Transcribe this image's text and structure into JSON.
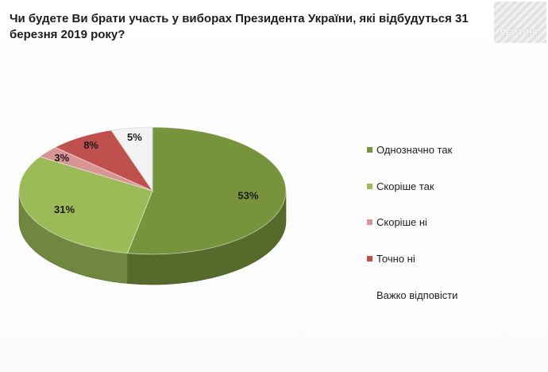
{
  "title": "Чи будете Ви брати участь у виборах Президента України, які відбудуться 31 березня 2019 року?",
  "logo": {
    "text": "РЕЙТИНГ"
  },
  "colors": {
    "Однозначно так": "#77933c",
    "Скоріше так": "#9bbb59",
    "Скоріше ні": "#d99594",
    "Точно ні": "#c0504d",
    "Важко відповісти": "#f2f2f2"
  },
  "chart_data": {
    "type": "pie",
    "style": "3d",
    "series": [
      {
        "label": "Однозначно так",
        "value": 53,
        "display": "53%"
      },
      {
        "label": "Скоріше так",
        "value": 31,
        "display": "31%"
      },
      {
        "label": "Скоріше ні",
        "value": 3,
        "display": "3%"
      },
      {
        "label": "Точно ні",
        "value": 8,
        "display": "8%"
      },
      {
        "label": "Важко відповісти",
        "value": 5,
        "display": "5%"
      }
    ],
    "legend_position": "right",
    "legend": [
      {
        "label": "Однозначно так"
      },
      {
        "label": "Скоріше  так"
      },
      {
        "label": "Скоріше  ні"
      },
      {
        "label": "Точно ні"
      },
      {
        "label": "Важко відповісти"
      }
    ]
  }
}
